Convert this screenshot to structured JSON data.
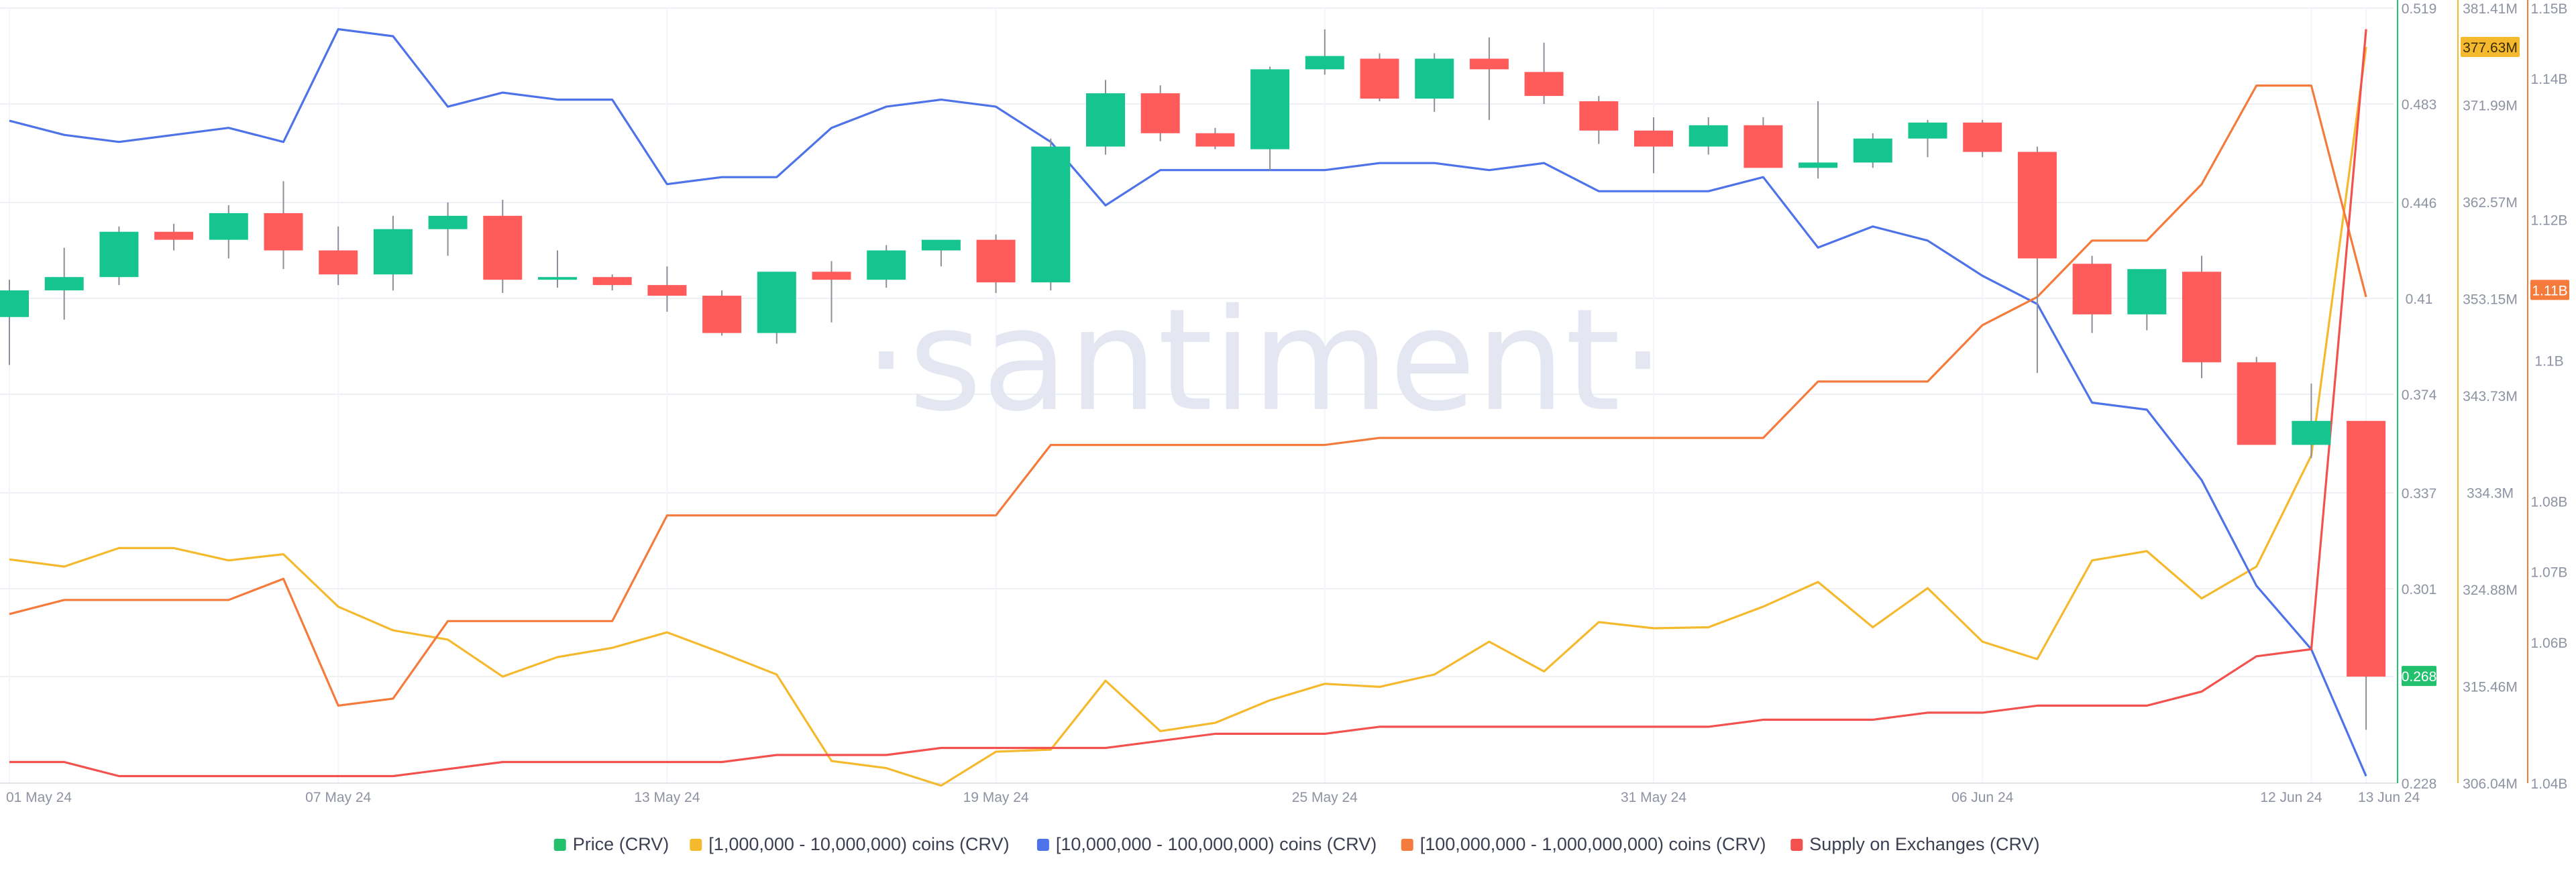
{
  "chart_data": {
    "type": "candlestick+line",
    "watermark": "·santiment·",
    "x_tick_labels": [
      "01 May 24",
      "07 May 24",
      "13 May 24",
      "19 May 24",
      "25 May 24",
      "31 May 24",
      "06 Jun 24",
      "12 Jun 24",
      "13 Jun 24"
    ],
    "x_tick_days": [
      0,
      6,
      12,
      18,
      24,
      30,
      36,
      42,
      43
    ],
    "price_axis": {
      "ticks": [
        0.519,
        0.483,
        0.446,
        0.41,
        0.374,
        0.337,
        0.301,
        0.268,
        0.228
      ],
      "range": [
        0.228,
        0.519
      ],
      "current": 0.268,
      "color": "#23c06e"
    },
    "coins_axis": {
      "ticks": [
        "381.41M",
        "377.63M",
        "371.99M",
        "362.57M",
        "353.15M",
        "343.73M",
        "334.3M",
        "324.88M",
        "315.46M",
        "306.04M"
      ],
      "tick_values": [
        381.41,
        371.99,
        362.57,
        353.15,
        343.73,
        334.3,
        324.88,
        315.46,
        306.04
      ],
      "range": [
        306.04,
        381.41
      ],
      "current_label": "377.63M",
      "current_value": 377.63,
      "color": "#f5b92e"
    },
    "supply_axis": {
      "ticks": [
        "1.15B",
        "1.14B",
        "1.12B",
        "1.11B",
        "1.1B",
        "1.08B",
        "1.07B",
        "1.06B",
        "1.04B"
      ],
      "tick_values": [
        1.15,
        1.14,
        1.12,
        1.1,
        1.08,
        1.07,
        1.06,
        1.04
      ],
      "range": [
        1.04,
        1.15
      ],
      "current_label": "1.11B",
      "current_value": 1.11,
      "color": "#f47b3c"
    },
    "candles": [
      {
        "day": 0,
        "open": 0.403,
        "high": 0.417,
        "low": 0.385,
        "close": 0.413
      },
      {
        "day": 1,
        "open": 0.413,
        "high": 0.429,
        "low": 0.402,
        "close": 0.418
      },
      {
        "day": 2,
        "open": 0.418,
        "high": 0.437,
        "low": 0.415,
        "close": 0.435
      },
      {
        "day": 3,
        "open": 0.435,
        "high": 0.438,
        "low": 0.428,
        "close": 0.432
      },
      {
        "day": 4,
        "open": 0.432,
        "high": 0.445,
        "low": 0.425,
        "close": 0.442
      },
      {
        "day": 5,
        "open": 0.442,
        "high": 0.454,
        "low": 0.421,
        "close": 0.428
      },
      {
        "day": 6,
        "open": 0.428,
        "high": 0.437,
        "low": 0.415,
        "close": 0.419
      },
      {
        "day": 7,
        "open": 0.419,
        "high": 0.441,
        "low": 0.413,
        "close": 0.436
      },
      {
        "day": 8,
        "open": 0.436,
        "high": 0.446,
        "low": 0.426,
        "close": 0.441
      },
      {
        "day": 9,
        "open": 0.441,
        "high": 0.447,
        "low": 0.412,
        "close": 0.417
      },
      {
        "day": 10,
        "open": 0.417,
        "high": 0.428,
        "low": 0.414,
        "close": 0.418
      },
      {
        "day": 11,
        "open": 0.418,
        "high": 0.419,
        "low": 0.413,
        "close": 0.415
      },
      {
        "day": 12,
        "open": 0.415,
        "high": 0.422,
        "low": 0.405,
        "close": 0.411
      },
      {
        "day": 13,
        "open": 0.411,
        "high": 0.413,
        "low": 0.396,
        "close": 0.397
      },
      {
        "day": 14,
        "open": 0.397,
        "high": 0.42,
        "low": 0.393,
        "close": 0.42
      },
      {
        "day": 15,
        "open": 0.42,
        "high": 0.424,
        "low": 0.401,
        "close": 0.417
      },
      {
        "day": 16,
        "open": 0.417,
        "high": 0.43,
        "low": 0.414,
        "close": 0.428
      },
      {
        "day": 17,
        "open": 0.428,
        "high": 0.43,
        "low": 0.422,
        "close": 0.432
      },
      {
        "day": 18,
        "open": 0.432,
        "high": 0.434,
        "low": 0.412,
        "close": 0.416
      },
      {
        "day": 19,
        "open": 0.416,
        "high": 0.47,
        "low": 0.413,
        "close": 0.467
      },
      {
        "day": 20,
        "open": 0.467,
        "high": 0.492,
        "low": 0.464,
        "close": 0.487
      },
      {
        "day": 21,
        "open": 0.487,
        "high": 0.49,
        "low": 0.469,
        "close": 0.472
      },
      {
        "day": 22,
        "open": 0.472,
        "high": 0.474,
        "low": 0.466,
        "close": 0.467
      },
      {
        "day": 23,
        "open": 0.466,
        "high": 0.497,
        "low": 0.458,
        "close": 0.496
      },
      {
        "day": 24,
        "open": 0.496,
        "high": 0.511,
        "low": 0.494,
        "close": 0.501
      },
      {
        "day": 25,
        "open": 0.5,
        "high": 0.502,
        "low": 0.484,
        "close": 0.485
      },
      {
        "day": 26,
        "open": 0.485,
        "high": 0.502,
        "low": 0.48,
        "close": 0.5
      },
      {
        "day": 27,
        "open": 0.5,
        "high": 0.508,
        "low": 0.477,
        "close": 0.496
      },
      {
        "day": 28,
        "open": 0.495,
        "high": 0.506,
        "low": 0.483,
        "close": 0.486
      },
      {
        "day": 29,
        "open": 0.484,
        "high": 0.486,
        "low": 0.468,
        "close": 0.473
      },
      {
        "day": 30,
        "open": 0.473,
        "high": 0.478,
        "low": 0.457,
        "close": 0.467
      },
      {
        "day": 31,
        "open": 0.467,
        "high": 0.478,
        "low": 0.464,
        "close": 0.475
      },
      {
        "day": 32,
        "open": 0.475,
        "high": 0.478,
        "low": 0.459,
        "close": 0.459
      },
      {
        "day": 33,
        "open": 0.459,
        "high": 0.484,
        "low": 0.455,
        "close": 0.461
      },
      {
        "day": 34,
        "open": 0.461,
        "high": 0.472,
        "low": 0.459,
        "close": 0.47
      },
      {
        "day": 35,
        "open": 0.47,
        "high": 0.477,
        "low": 0.463,
        "close": 0.476
      },
      {
        "day": 36,
        "open": 0.476,
        "high": 0.477,
        "low": 0.463,
        "close": 0.465
      },
      {
        "day": 37,
        "open": 0.465,
        "high": 0.467,
        "low": 0.382,
        "close": 0.425
      },
      {
        "day": 38,
        "open": 0.423,
        "high": 0.426,
        "low": 0.397,
        "close": 0.404
      },
      {
        "day": 39,
        "open": 0.404,
        "high": 0.42,
        "low": 0.398,
        "close": 0.421
      },
      {
        "day": 40,
        "open": 0.42,
        "high": 0.426,
        "low": 0.38,
        "close": 0.386
      },
      {
        "day": 41,
        "open": 0.386,
        "high": 0.388,
        "low": 0.355,
        "close": 0.355
      },
      {
        "day": 42,
        "open": 0.355,
        "high": 0.378,
        "low": 0.35,
        "close": 0.364
      },
      {
        "day": 43,
        "open": 0.364,
        "high": 0.364,
        "low": 0.248,
        "close": 0.268
      }
    ],
    "series": [
      {
        "name": "[1,000,000 - 10,000,000) coins (CRV)",
        "axis": "coins",
        "color": "#f5b92e",
        "x": [
          0,
          1,
          2,
          3,
          4,
          5,
          6,
          7,
          8,
          9,
          10,
          11,
          12,
          13,
          14,
          15,
          16,
          17,
          18,
          19,
          20,
          21,
          22,
          23,
          24,
          25,
          26,
          27,
          28,
          29,
          30,
          31,
          32,
          33,
          34,
          35,
          36,
          37,
          38,
          39,
          40,
          41,
          42,
          43
        ],
        "values": [
          327.8,
          327.1,
          328.9,
          328.9,
          327.7,
          328.3,
          323.2,
          320.9,
          320.0,
          316.4,
          318.3,
          319.2,
          320.7,
          318.7,
          316.6,
          308.2,
          307.5,
          305.8,
          309.1,
          309.3,
          316.0,
          311.1,
          311.9,
          314.1,
          315.7,
          315.4,
          316.6,
          319.8,
          316.9,
          321.7,
          321.1,
          321.2,
          323.2,
          325.6,
          321.2,
          325.0,
          319.8,
          318.1,
          327.7,
          328.6,
          324.0,
          327.1,
          337.9,
          377.63
        ]
      },
      {
        "name": "[10,000,000 - 100,000,000) coins (CRV)",
        "axis": "supply",
        "color": "#4e72e8",
        "x": [
          0,
          1,
          2,
          3,
          4,
          5,
          6,
          7,
          8,
          9,
          10,
          11,
          12,
          13,
          14,
          15,
          16,
          17,
          18,
          19,
          20,
          21,
          22,
          23,
          24,
          25,
          26,
          27,
          28,
          29,
          30,
          31,
          32,
          33,
          34,
          35,
          36,
          37,
          38,
          39,
          40,
          41,
          42,
          43
        ],
        "values": [
          1.134,
          1.132,
          1.131,
          1.132,
          1.133,
          1.131,
          1.147,
          1.146,
          1.136,
          1.138,
          1.137,
          1.137,
          1.125,
          1.126,
          1.126,
          1.133,
          1.136,
          1.137,
          1.136,
          1.131,
          1.122,
          1.127,
          1.127,
          1.127,
          1.127,
          1.128,
          1.128,
          1.127,
          1.128,
          1.124,
          1.124,
          1.124,
          1.126,
          1.116,
          1.119,
          1.117,
          1.112,
          1.108,
          1.094,
          1.093,
          1.083,
          1.068,
          1.059,
          1.041
        ]
      },
      {
        "name": "[100,000,000 - 1,000,000,000) coins (CRV)",
        "axis": "supply",
        "color": "#f47b3c",
        "x": [
          0,
          1,
          2,
          3,
          4,
          5,
          6,
          7,
          8,
          9,
          10,
          11,
          12,
          13,
          14,
          15,
          16,
          17,
          18,
          19,
          20,
          21,
          22,
          23,
          24,
          25,
          26,
          27,
          28,
          29,
          30,
          31,
          32,
          33,
          34,
          35,
          36,
          37,
          38,
          39,
          40,
          41,
          42,
          43
        ],
        "values": [
          1.064,
          1.066,
          1.066,
          1.066,
          1.066,
          1.069,
          1.051,
          1.052,
          1.063,
          1.063,
          1.063,
          1.063,
          1.078,
          1.078,
          1.078,
          1.078,
          1.078,
          1.078,
          1.078,
          1.088,
          1.088,
          1.088,
          1.088,
          1.088,
          1.088,
          1.089,
          1.089,
          1.089,
          1.089,
          1.089,
          1.089,
          1.089,
          1.089,
          1.097,
          1.097,
          1.097,
          1.105,
          1.109,
          1.117,
          1.117,
          1.125,
          1.139,
          1.139,
          1.109
        ]
      },
      {
        "name": "Supply on Exchanges (CRV)",
        "axis": "supply",
        "color": "#f2514d",
        "x": [
          0,
          1,
          2,
          3,
          4,
          5,
          6,
          7,
          8,
          9,
          10,
          11,
          12,
          13,
          14,
          15,
          16,
          17,
          18,
          19,
          20,
          21,
          22,
          23,
          24,
          25,
          26,
          27,
          28,
          29,
          30,
          31,
          32,
          33,
          34,
          35,
          36,
          37,
          38,
          39,
          40,
          41,
          42,
          43
        ],
        "values": [
          1.043,
          1.043,
          1.041,
          1.041,
          1.041,
          1.041,
          1.041,
          1.041,
          1.042,
          1.043,
          1.043,
          1.043,
          1.043,
          1.043,
          1.044,
          1.044,
          1.044,
          1.045,
          1.045,
          1.045,
          1.045,
          1.046,
          1.047,
          1.047,
          1.047,
          1.048,
          1.048,
          1.048,
          1.048,
          1.048,
          1.048,
          1.048,
          1.049,
          1.049,
          1.049,
          1.05,
          1.05,
          1.051,
          1.051,
          1.051,
          1.053,
          1.058,
          1.059,
          1.147
        ]
      }
    ],
    "legend": [
      {
        "label": "Price (CRV)",
        "color": "#23c06e"
      },
      {
        "label": "[1,000,000 - 10,000,000) coins (CRV)",
        "color": "#f5b92e"
      },
      {
        "label": "[10,000,000 - 100,000,000) coins (CRV)",
        "color": "#4e72e8"
      },
      {
        "label": "[100,000,000 - 1,000,000,000) coins (CRV)",
        "color": "#f47b3c"
      },
      {
        "label": "Supply on Exchanges (CRV)",
        "color": "#f2514d"
      }
    ],
    "candle_up_color": "#16c48f",
    "candle_down_color": "#ff5b5b",
    "grid": true,
    "legend_position": "bottom-center"
  }
}
